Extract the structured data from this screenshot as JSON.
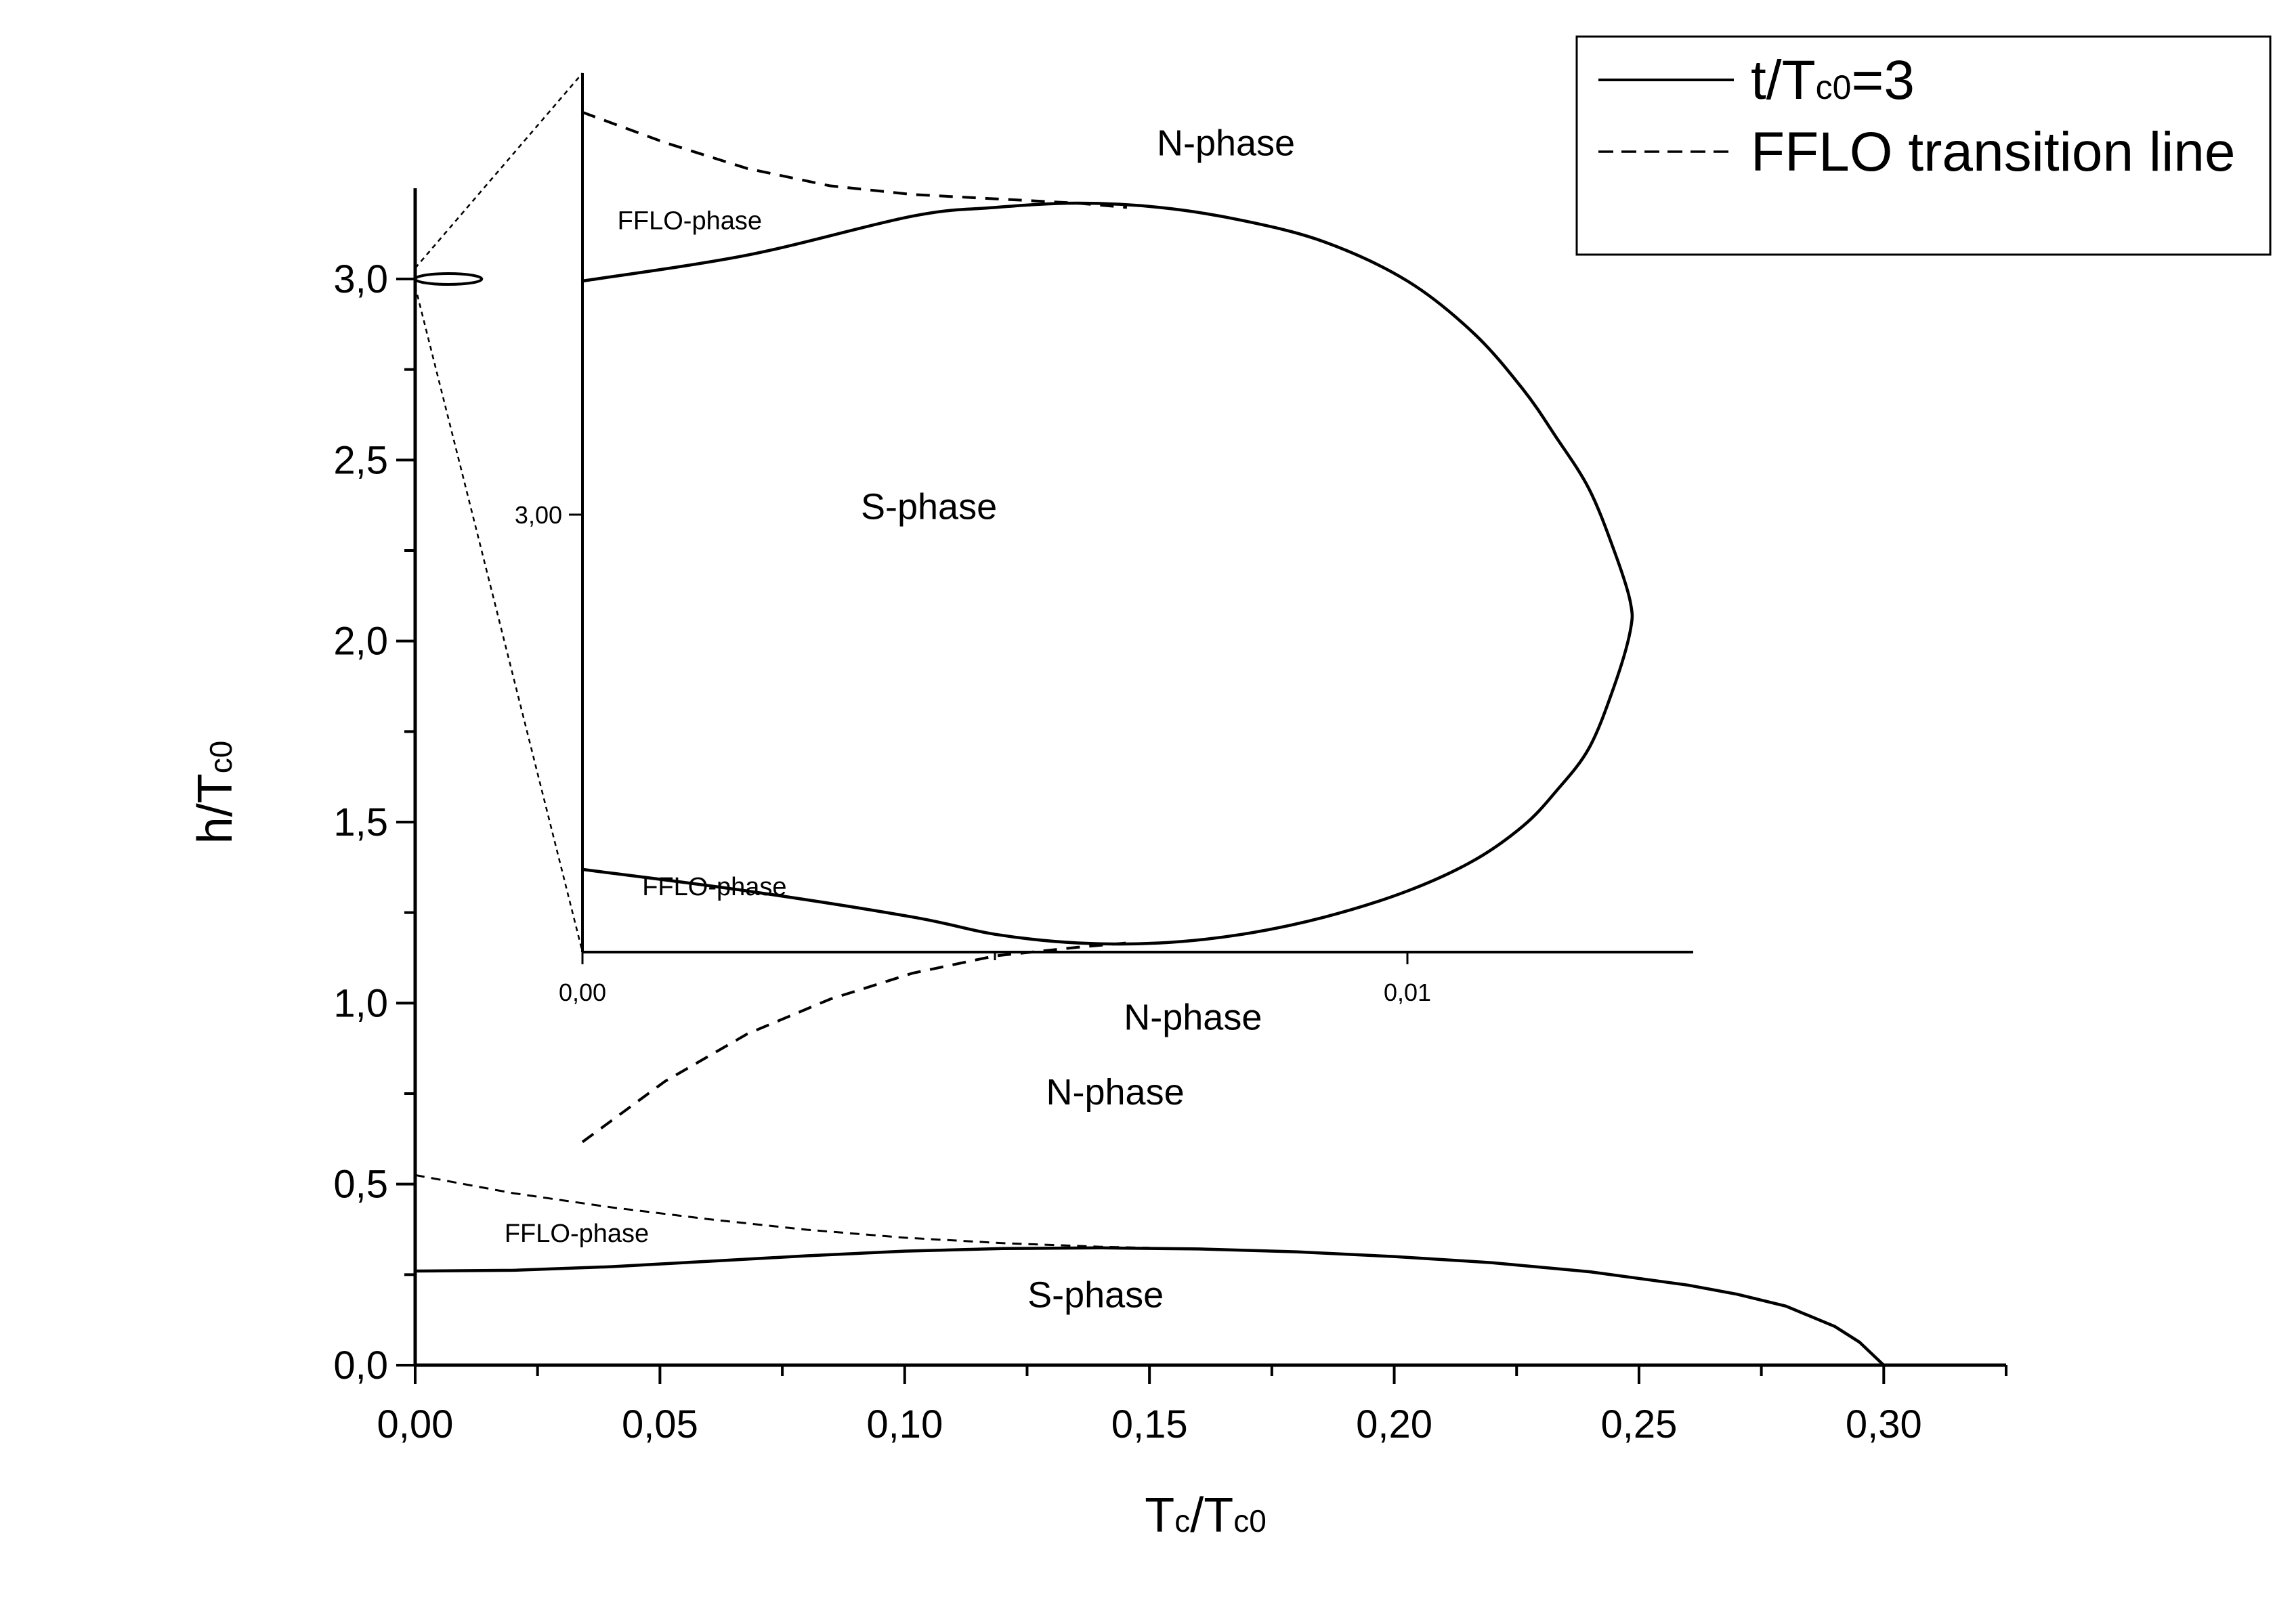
{
  "chart_data": [
    {
      "id": "main",
      "type": "line",
      "xlabel": {
        "base": "T",
        "sub": "c",
        "sep": "/T",
        "sub2": "c0"
      },
      "ylabel": {
        "base": "h/T",
        "sub": "c0"
      },
      "xlim": [
        0,
        0.325
      ],
      "ylim": [
        0,
        3.25
      ],
      "x_ticks": [
        0,
        0.05,
        0.1,
        0.15,
        0.2,
        0.25,
        0.3
      ],
      "x_tick_labels": [
        "0,00",
        "0,05",
        "0,10",
        "0,15",
        "0,20",
        "0,25",
        "0,30"
      ],
      "x_minor_step": 0.025,
      "y_ticks": [
        0,
        0.5,
        1,
        1.5,
        2,
        2.5,
        3
      ],
      "y_tick_labels": [
        "0,0",
        "0,5",
        "1,0",
        "1,5",
        "2,0",
        "2,5",
        "3,0"
      ],
      "y_minor_step": 0.25,
      "series": [
        {
          "style": "solid",
          "x": [
            0,
            0.02,
            0.04,
            0.06,
            0.08,
            0.1,
            0.12,
            0.14,
            0.16,
            0.18,
            0.2,
            0.22,
            0.24,
            0.26,
            0.27,
            0.28,
            0.29,
            0.295,
            0.3
          ],
          "y": [
            0.26,
            0.262,
            0.272,
            0.287,
            0.302,
            0.315,
            0.322,
            0.324,
            0.321,
            0.313,
            0.3,
            0.283,
            0.258,
            0.221,
            0.196,
            0.163,
            0.107,
            0.064,
            0.0
          ]
        },
        {
          "style": "dashed",
          "x": [
            0,
            0.02,
            0.04,
            0.06,
            0.08,
            0.1,
            0.12,
            0.14,
            0.15
          ],
          "y": [
            0.525,
            0.475,
            0.436,
            0.403,
            0.374,
            0.352,
            0.337,
            0.327,
            0.324
          ]
        }
      ],
      "annotations": [
        {
          "text": "N-phase",
          "x": 0.143,
          "y": 0.72,
          "size": "main"
        },
        {
          "text": "FFLO-phase",
          "x": 0.033,
          "y": 0.34,
          "size": "small"
        },
        {
          "text": "S-phase",
          "x": 0.139,
          "y": 0.16,
          "size": "main"
        }
      ]
    },
    {
      "id": "inset",
      "type": "line",
      "xlim": [
        0,
        0.0135
      ],
      "ylim": [
        2.9852,
        3.0104
      ],
      "x_ticks": [
        0,
        0.01
      ],
      "x_tick_labels": [
        "0,00",
        "0,01"
      ],
      "x_minor": [
        0.005
      ],
      "y_ticks": [
        3.0
      ],
      "y_tick_labels": [
        "3,00"
      ],
      "series": [
        {
          "style": "solid",
          "x": [
            0.0,
            0.002,
            0.004,
            0.005,
            0.006,
            0.007,
            0.008,
            0.009,
            0.01,
            0.0108,
            0.0114,
            0.0118,
            0.0122,
            0.0125,
            0.0127,
            0.0127,
            0.0125,
            0.0122,
            0.0118,
            0.0114,
            0.0108,
            0.01,
            0.009,
            0.008,
            0.007,
            0.006,
            0.005,
            0.004,
            0.002,
            0.0
          ],
          "y": [
            3.0054,
            3.006,
            3.0069,
            3.0071,
            3.0072,
            3.0071,
            3.0068,
            3.0063,
            3.0054,
            3.0042,
            3.0029,
            3.0018,
            3.0006,
            2.9992,
            2.998,
            2.9973,
            2.996,
            2.9946,
            2.9936,
            2.9928,
            2.992,
            2.9913,
            2.9907,
            2.9903,
            2.9901,
            2.9901,
            2.9903,
            2.9907,
            2.9913,
            2.9918
          ]
        },
        {
          "style": "dashed",
          "x": [
            0.0,
            0.001,
            0.002,
            0.003,
            0.004,
            0.005,
            0.006,
            0.0066
          ],
          "y": [
            3.0093,
            3.0086,
            3.008,
            3.0076,
            3.0074,
            3.0073,
            3.0072,
            3.0071
          ]
        },
        {
          "style": "dashed",
          "x": [
            0.0,
            0.0005,
            0.001,
            0.002,
            0.003,
            0.004,
            0.005,
            0.006,
            0.0066
          ],
          "y": [
            2.9855,
            2.9862,
            2.9869,
            2.988,
            2.9888,
            2.9894,
            2.9898,
            2.99,
            2.9901
          ]
        }
      ],
      "annotations": [
        {
          "text": "N-phase",
          "x": 0.0078,
          "y": 3.0083,
          "size": "main"
        },
        {
          "text": "FFLO-phase",
          "x": 0.0013,
          "y": 3.0066,
          "size": "small"
        },
        {
          "text": "S-phase",
          "x": 0.0042,
          "y": 2.9999,
          "size": "main"
        },
        {
          "text": "FFLO-phase",
          "x": 0.0016,
          "y": 2.9912,
          "size": "small"
        },
        {
          "text": "N-phase",
          "x": 0.0074,
          "y": 2.9881,
          "size": "main"
        }
      ]
    }
  ],
  "legend": {
    "placement": "top-right",
    "entries": [
      {
        "style": "solid",
        "label": {
          "base": "t/T",
          "sub": "c0",
          "tail": "=3"
        }
      },
      {
        "style": "dashed",
        "label": {
          "base": "FFLO transition line",
          "sub": "",
          "tail": ""
        }
      }
    ]
  }
}
